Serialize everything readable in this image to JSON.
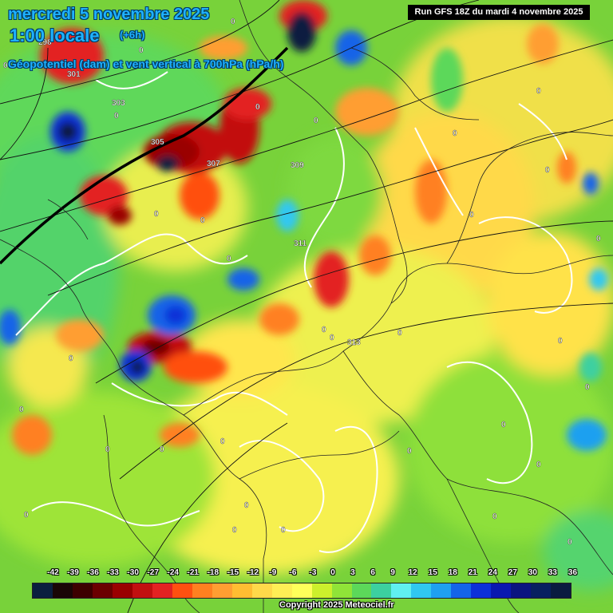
{
  "header": {
    "date": "mercredi 5 novembre 2025",
    "time": "1:00 locale",
    "offset": "(+6h)",
    "field": "Géopotentiel (dam) et vent vertical à 700hPa (hPa/h)"
  },
  "run_label": "Run GFS 18Z du mardi 4 novembre 2025",
  "copyright": "Copyright 2025 Meteociel.fr",
  "legend": {
    "ticks": [
      "-42",
      "-39",
      "-36",
      "-33",
      "-30",
      "-27",
      "-24",
      "-21",
      "-18",
      "-15",
      "-12",
      "-9",
      "-6",
      "-3",
      "0",
      "3",
      "6",
      "9",
      "12",
      "15",
      "18",
      "21",
      "24",
      "27",
      "30",
      "33",
      "36"
    ],
    "colors": [
      "#0a1f3f",
      "#1a0606",
      "#3d0000",
      "#6b0000",
      "#9a0000",
      "#c21010",
      "#e32222",
      "#ff5010",
      "#ff8020",
      "#ff9e32",
      "#ffbd32",
      "#ffd94a",
      "#ffee55",
      "#ffff5a",
      "#ccf02c",
      "#90e438",
      "#5cd85a",
      "#3cd0a0",
      "#60f0f0",
      "#30c8f0",
      "#1fa0f0",
      "#1464e8",
      "#0c30d8",
      "#0a18b0",
      "#0a1480",
      "#082060",
      "#0a1b40"
    ]
  },
  "contours": {
    "geopotential_labels": [
      "301",
      "303",
      "305",
      "307",
      "309",
      "311",
      "313",
      "298"
    ],
    "vv_zero_label": "0"
  }
}
